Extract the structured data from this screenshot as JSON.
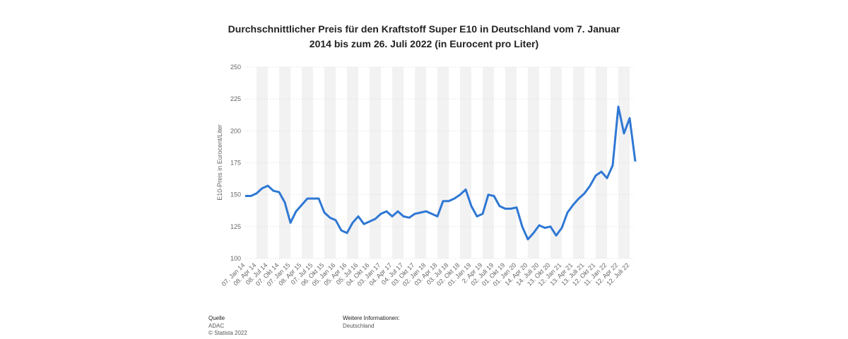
{
  "chart_data": {
    "type": "line",
    "title": [
      "Durchschnittlicher Preis für den Kraftstoff Super E10 in Deutschland vom 7. Januar",
      "2014 bis zum 26. Juli 2022 (in Eurocent pro Liter)"
    ],
    "y_label": "E10-Preis in Eurocent/Liter",
    "categories": [
      "07. Jan 14",
      null,
      "08. Apr 14",
      null,
      "08. Jul 14",
      null,
      "07. Okt 14",
      null,
      "07. Jan 15",
      null,
      "08. Apr 15",
      null,
      "07. Jul 15",
      null,
      "06. Okt 15",
      null,
      "05. Jan 16",
      null,
      "05. Apr 16",
      null,
      "05. Jul 16",
      null,
      "04. Okt 16",
      null,
      "03. Jan 17",
      null,
      "04. Apr 17",
      null,
      "04. Jul 17",
      null,
      "03. Okt 17",
      null,
      "02. Jan 18",
      null,
      "03. Apr 18",
      null,
      "03. Jul 18",
      null,
      "02. Okt 18",
      null,
      "01. Jan 19",
      null,
      "2. Apr 19",
      null,
      "02. Juli 19",
      null,
      "01. Okt 19",
      null,
      "01. Jan 20",
      null,
      "14. Apr 20",
      null,
      "14. Juli 20",
      null,
      "13. Okt 20",
      null,
      "12. Jan 21",
      null,
      "13. Apr 21",
      null,
      "13. Juli 21",
      null,
      "12. Okt 21",
      null,
      "11. Jan 22",
      null,
      "12. Apr 22",
      null,
      "12. Juli 22",
      null
    ],
    "series": [
      {
        "name": "E10",
        "color": "#2f78d4",
        "values": [
          149,
          149,
          151,
          155,
          157,
          153,
          152,
          144,
          128,
          137,
          142,
          147,
          147,
          147,
          136,
          132,
          130,
          122,
          120,
          128,
          133,
          127,
          129,
          131,
          135,
          137,
          133,
          137,
          133,
          132,
          135,
          136,
          137,
          135,
          133,
          145,
          145,
          147,
          150,
          154,
          141,
          133,
          135,
          150,
          149,
          141,
          139,
          139,
          140,
          125,
          115,
          120,
          126,
          124,
          125,
          118,
          124,
          136,
          142,
          147,
          151,
          157,
          165,
          168,
          163,
          173,
          219,
          198,
          210,
          176
        ]
      }
    ],
    "ylim": [
      100,
      250
    ],
    "yticks": [
      100,
      125,
      150,
      175,
      200,
      225,
      250
    ],
    "grid": true,
    "source_title": "Quelle",
    "source": "ADAC",
    "copyright": "© Statista 2022",
    "info_title": "Weitere Informationen:",
    "info": "Deutschland"
  }
}
